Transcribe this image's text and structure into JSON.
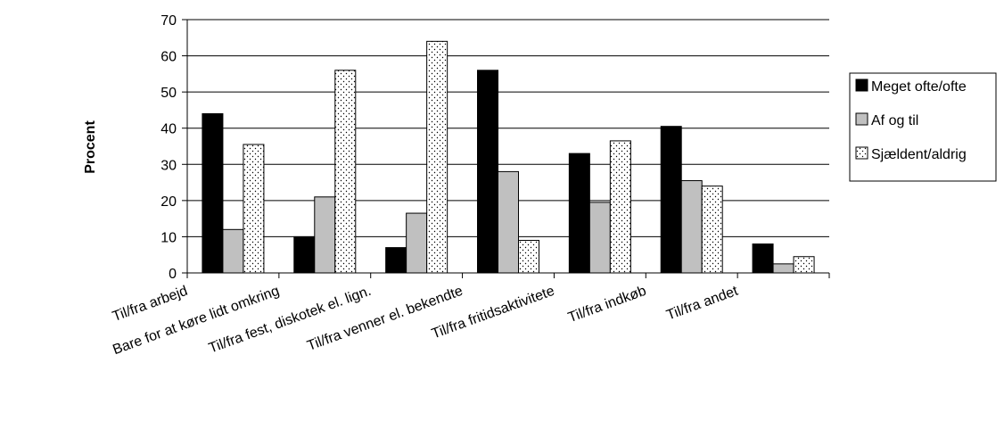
{
  "chart_data": {
    "type": "bar",
    "title": "",
    "xlabel": "",
    "ylabel": "Procent",
    "ylim": [
      0,
      70
    ],
    "yticks": [
      0,
      10,
      20,
      30,
      40,
      50,
      60,
      70
    ],
    "grid": true,
    "legend_position": "right",
    "categories": [
      "Til/fra arbejd",
      "Bare for at køre lidt omkring",
      "Til/fra fest, diskotek el. lign.",
      "Til/fra venner el. bekendte",
      "Til/fra fritidsaktivitete",
      "Til/fra indkøb",
      "Til/fra andet"
    ],
    "series": [
      {
        "name": "Meget ofte/ofte",
        "color": "#000000",
        "pattern": "solid",
        "values": [
          44,
          10,
          7,
          56,
          33,
          40.5,
          8
        ]
      },
      {
        "name": "Af og til",
        "color": "#c0c0c0",
        "pattern": "solid",
        "values": [
          12,
          21,
          16.5,
          28,
          19.5,
          25.5,
          2.5
        ]
      },
      {
        "name": "Sjældent/aldrig",
        "color": "#ffffff",
        "pattern": "dots",
        "values": [
          35.5,
          56,
          64,
          9,
          36.5,
          24,
          4.5
        ]
      }
    ]
  }
}
